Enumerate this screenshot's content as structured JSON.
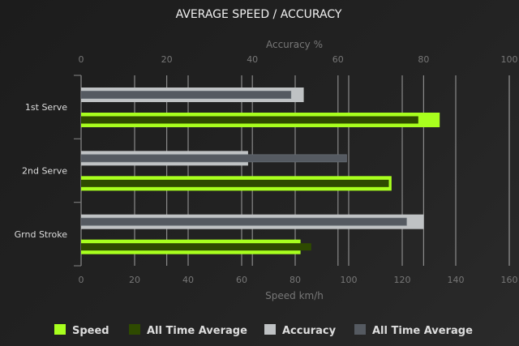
{
  "chart_data": {
    "type": "bar",
    "orientation": "horizontal",
    "title": "AVERAGE SPEED / ACCURACY",
    "categories": [
      "1st Serve",
      "2nd Serve",
      "Grnd Stroke"
    ],
    "x_bottom": {
      "label": "Speed km/h",
      "range": [
        0,
        160
      ],
      "ticks": [
        0,
        20,
        40,
        60,
        80,
        100,
        120,
        140,
        160
      ]
    },
    "x_top": {
      "label": "Accuracy %",
      "range": [
        0,
        100
      ],
      "ticks": [
        0,
        20,
        40,
        60,
        80,
        100
      ]
    },
    "grid": true,
    "legend_position": "bottom",
    "series": [
      {
        "name": "Speed",
        "axis": "bottom",
        "values": [
          134,
          116,
          82
        ],
        "color": "#a8ff1e"
      },
      {
        "name": "All Time Average",
        "axis": "bottom",
        "values": [
          126,
          115,
          86
        ],
        "color": "#2e4a00"
      },
      {
        "name": "Accuracy",
        "axis": "top",
        "values": [
          52,
          39,
          80
        ],
        "color": "#bfc2c4"
      },
      {
        "name": "All Time Average",
        "axis": "top",
        "values": [
          49,
          62,
          76
        ],
        "color": "#555a61"
      }
    ]
  }
}
